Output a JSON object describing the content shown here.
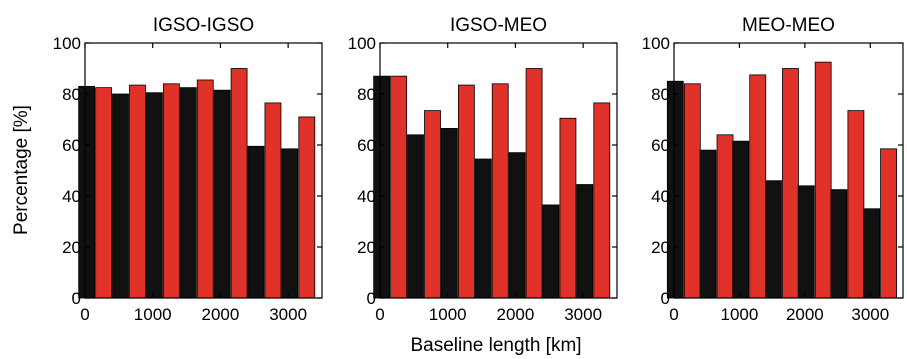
{
  "chart_data": [
    {
      "type": "bar",
      "title": "IGSO-IGSO",
      "x": [
        150,
        650,
        1150,
        1650,
        2150,
        2650,
        3150
      ],
      "xlim": [
        0,
        3500
      ],
      "ylim": [
        0,
        100
      ],
      "xticks": [
        0,
        1000,
        2000,
        3000
      ],
      "yticks": [
        0,
        20,
        40,
        60,
        80,
        100
      ],
      "series": [
        {
          "color": "#111111",
          "values": [
            83,
            80,
            80.5,
            82.5,
            81.5,
            59.5,
            58.5
          ]
        },
        {
          "color": "#e03228",
          "values": [
            82.5,
            83.5,
            84,
            85.5,
            90,
            76.5,
            71
          ]
        }
      ]
    },
    {
      "type": "bar",
      "title": "IGSO-MEO",
      "x": [
        150,
        650,
        1150,
        1650,
        2150,
        2650,
        3150
      ],
      "xlim": [
        0,
        3500
      ],
      "ylim": [
        0,
        100
      ],
      "xticks": [
        0,
        1000,
        2000,
        3000
      ],
      "yticks": [
        0,
        20,
        40,
        60,
        80,
        100
      ],
      "series": [
        {
          "color": "#111111",
          "values": [
            87,
            64,
            66.5,
            54.5,
            57,
            36.5,
            44.5
          ]
        },
        {
          "color": "#e03228",
          "values": [
            87,
            73.5,
            83.5,
            84,
            90,
            70.5,
            76.5
          ]
        }
      ]
    },
    {
      "type": "bar",
      "title": "MEO-MEO",
      "x": [
        150,
        650,
        1150,
        1650,
        2150,
        2650,
        3150
      ],
      "xlim": [
        0,
        3500
      ],
      "ylim": [
        0,
        100
      ],
      "xticks": [
        0,
        1000,
        2000,
        3000
      ],
      "yticks": [
        0,
        20,
        40,
        60,
        80,
        100
      ],
      "series": [
        {
          "color": "#111111",
          "values": [
            85,
            58,
            61.5,
            46,
            44,
            42.5,
            35
          ]
        },
        {
          "color": "#e03228",
          "values": [
            84,
            64,
            87.5,
            90,
            92.5,
            73.5,
            58.5
          ]
        }
      ]
    }
  ],
  "labels": {
    "ylabel": "Percentage [%]",
    "xlabel": "Baseline length [km]"
  }
}
